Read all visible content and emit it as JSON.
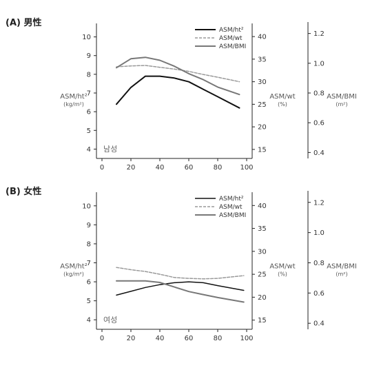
{
  "chart_data": [
    {
      "type": "line",
      "title": "(A) 男性",
      "inner_label": "남성",
      "x": [
        10,
        20,
        30,
        40,
        50,
        60,
        70,
        80,
        95
      ],
      "xticks": [
        "0",
        "20",
        "40",
        "60",
        "80",
        "100"
      ],
      "xlim": [
        0,
        100
      ],
      "left_axis": {
        "label": "ASM/ht²",
        "unit": "(kg/m²)",
        "lim": [
          3.5,
          10.5
        ],
        "ticks": [
          "4",
          "5",
          "6",
          "7",
          "8",
          "9",
          "10"
        ]
      },
      "mid_axis": {
        "label": "ASM/wt",
        "unit": "(%)",
        "lim": [
          13,
          42
        ],
        "ticks": [
          "15",
          "20",
          "25",
          "30",
          "35",
          "40"
        ]
      },
      "right_axis": {
        "label": "ASM/BMI",
        "unit": "(m²)",
        "lim": [
          0.36,
          1.24
        ],
        "ticks": [
          "0.4",
          "0.6",
          "0.8",
          "1.0",
          "1.2"
        ]
      },
      "series": [
        {
          "name": "ASM/ht²",
          "axis": "left",
          "color": "#111111",
          "dash": "",
          "width": 2,
          "values": [
            6.4,
            7.3,
            7.9,
            7.9,
            7.8,
            7.6,
            7.2,
            6.8,
            6.2
          ]
        },
        {
          "name": "ASM/wt",
          "axis": "mid",
          "color": "#999999",
          "dash": "4,2",
          "width": 1.5,
          "values": [
            33.3,
            33.5,
            33.6,
            33.2,
            32.8,
            32.3,
            31.6,
            31.0,
            30.0
          ]
        },
        {
          "name": "ASM/BMI",
          "axis": "right",
          "color": "#777777",
          "dash": "",
          "width": 2,
          "values": [
            0.97,
            1.03,
            1.04,
            1.02,
            0.98,
            0.93,
            0.89,
            0.84,
            0.79
          ]
        }
      ],
      "legend_position": "top-right"
    },
    {
      "type": "line",
      "title": "(B) 女性",
      "inner_label": "여성",
      "x": [
        10,
        20,
        30,
        40,
        50,
        60,
        70,
        80,
        98
      ],
      "xticks": [
        "0",
        "20",
        "40",
        "60",
        "80",
        "100"
      ],
      "xlim": [
        0,
        100
      ],
      "left_axis": {
        "label": "ASM/ht²",
        "unit": "(kg/m²)",
        "lim": [
          3.5,
          10.5
        ],
        "ticks": [
          "4",
          "5",
          "6",
          "7",
          "8",
          "9",
          "10"
        ]
      },
      "mid_axis": {
        "label": "ASM/wt",
        "unit": "(%)",
        "lim": [
          13,
          42
        ],
        "ticks": [
          "15",
          "20",
          "25",
          "30",
          "35",
          "40"
        ]
      },
      "right_axis": {
        "label": "ASM/BMI",
        "unit": "(m²)",
        "lim": [
          0.36,
          1.24
        ],
        "ticks": [
          "0.4",
          "0.6",
          "0.8",
          "1.0",
          "1.2"
        ]
      },
      "series": [
        {
          "name": "ASM/ht²",
          "axis": "left",
          "color": "#111111",
          "dash": "",
          "width": 1.5,
          "values": [
            5.3,
            5.5,
            5.7,
            5.85,
            5.95,
            6.0,
            5.95,
            5.8,
            5.55
          ]
        },
        {
          "name": "ASM/wt",
          "axis": "mid",
          "color": "#999999",
          "dash": "4,2",
          "width": 1.5,
          "values": [
            26.5,
            26.0,
            25.6,
            25.0,
            24.3,
            24.1,
            24.0,
            24.1,
            24.7
          ]
        },
        {
          "name": "ASM/BMI",
          "axis": "right",
          "color": "#777777",
          "dash": "",
          "width": 2,
          "values": [
            0.68,
            0.68,
            0.68,
            0.67,
            0.64,
            0.61,
            0.59,
            0.57,
            0.54
          ]
        }
      ],
      "legend_position": "top-right"
    }
  ]
}
